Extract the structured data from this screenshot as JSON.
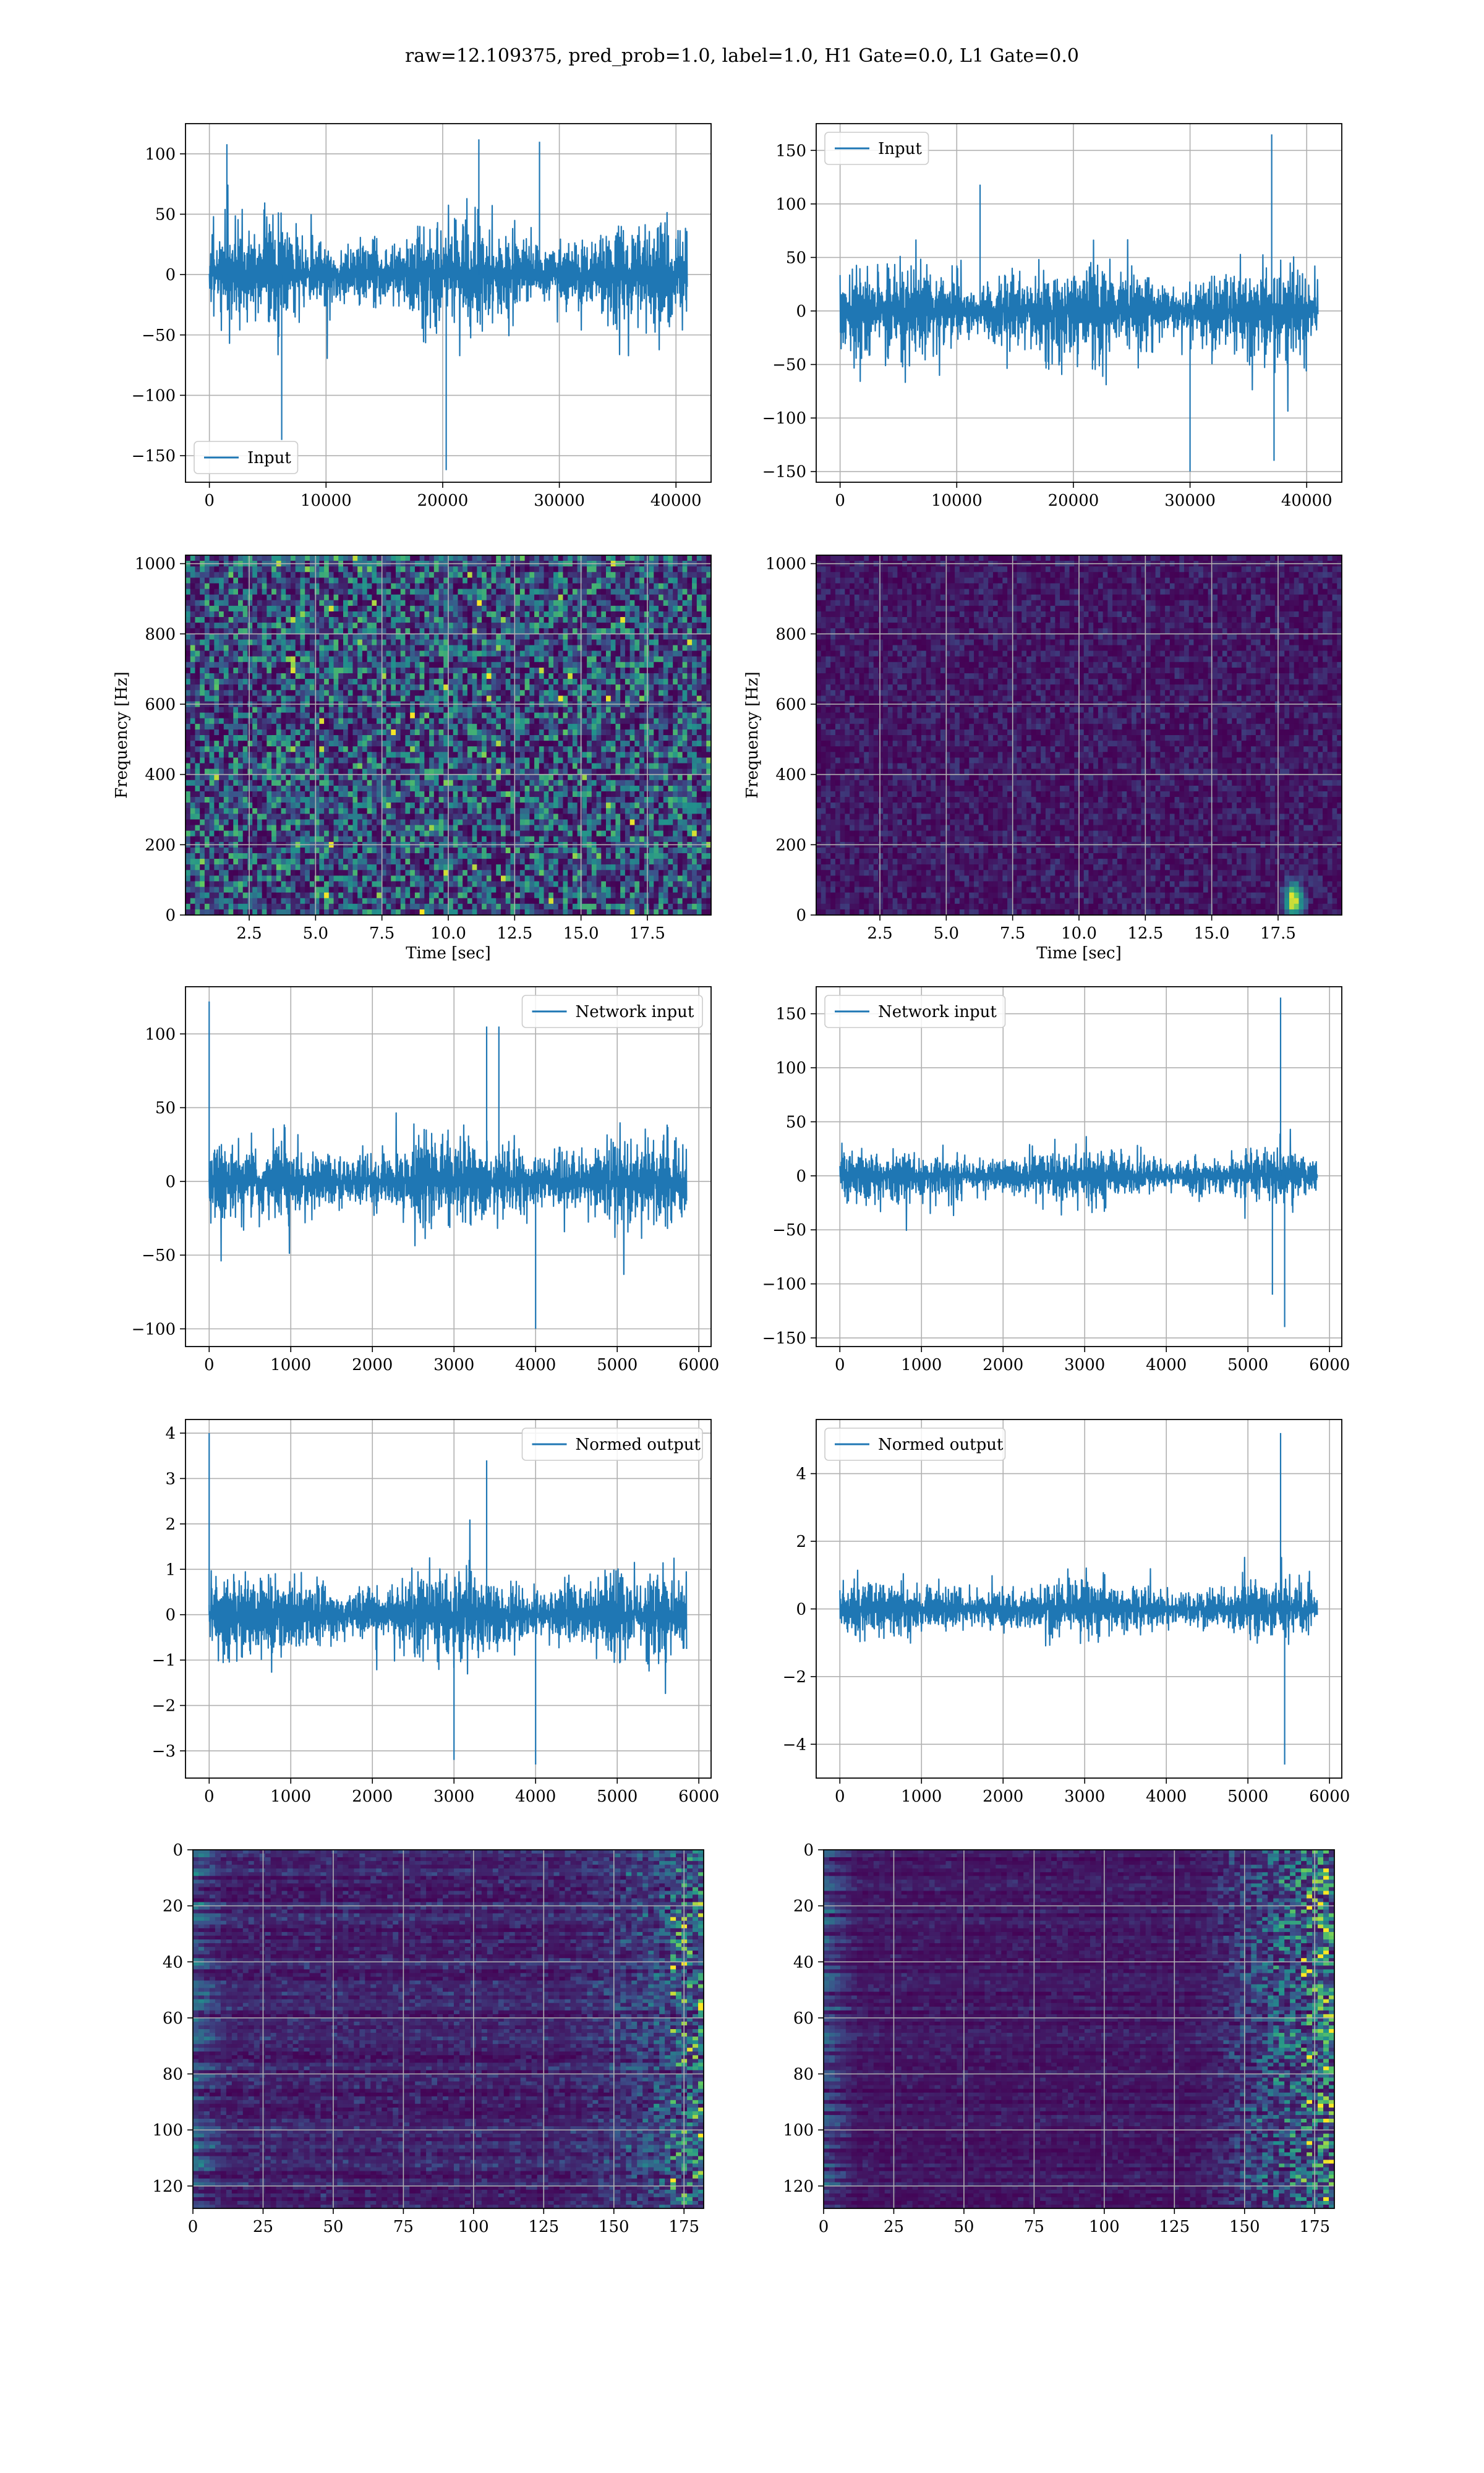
{
  "figure": {
    "title": "raw=12.109375, pred_prob=1.0, label=1.0, H1 Gate=0.0, L1 Gate=0.0"
  },
  "colors": {
    "series": "#1f77b4",
    "grid": "#b0b0b0",
    "axes": "#000000",
    "viridis_dark": "#440154",
    "viridis_blue": "#31688e",
    "viridis_teal": "#21918c",
    "viridis_green": "#35b779",
    "viridis_yellow": "#fde725"
  },
  "chart_data": [
    {
      "id": "row1-left",
      "type": "line",
      "title": "",
      "legend": {
        "entries": [
          "Input"
        ],
        "placement": "lower-left"
      },
      "xlabel": "",
      "ylabel": "",
      "xlim": [
        -2048,
        43008
      ],
      "ylim": [
        -172,
        125
      ],
      "xticks": [
        0,
        10000,
        20000,
        30000,
        40000
      ],
      "xticklabels": [
        "0",
        "10000",
        "20000",
        "30000",
        "40000"
      ],
      "yticks": [
        -150,
        -100,
        -50,
        0,
        50,
        100
      ],
      "yticklabels": [
        "−150",
        "−100",
        "−50",
        "0",
        "50",
        "100"
      ],
      "grid": true,
      "series": [
        {
          "name": "Input",
          "x_range": [
            0,
            40960
          ],
          "envelope_typical": [
            -80,
            80
          ],
          "peaks": [
            [
              1500,
              108
            ],
            [
              6200,
              -137
            ],
            [
              20300,
              -162
            ],
            [
              23100,
              112
            ],
            [
              28300,
              110
            ]
          ]
        }
      ]
    },
    {
      "id": "row1-right",
      "type": "line",
      "title": "",
      "legend": {
        "entries": [
          "Input"
        ],
        "placement": "upper-left"
      },
      "xlabel": "",
      "ylabel": "",
      "xlim": [
        -2048,
        43008
      ],
      "ylim": [
        -160,
        175
      ],
      "xticks": [
        0,
        10000,
        20000,
        30000,
        40000
      ],
      "xticklabels": [
        "0",
        "10000",
        "20000",
        "30000",
        "40000"
      ],
      "yticks": [
        -150,
        -100,
        -50,
        0,
        50,
        100,
        150
      ],
      "yticklabels": [
        "−150",
        "−100",
        "−50",
        "0",
        "50",
        "100",
        "150"
      ],
      "grid": true,
      "series": [
        {
          "name": "Input",
          "x_range": [
            0,
            40960
          ],
          "envelope_typical": [
            -85,
            85
          ],
          "peaks": [
            [
              37000,
              165
            ],
            [
              30000,
              -150
            ],
            [
              37200,
              -140
            ],
            [
              12000,
              118
            ]
          ]
        }
      ]
    },
    {
      "id": "row2-left",
      "type": "heatmap",
      "title": "",
      "xlabel": "Time [sec]",
      "ylabel": "Frequency [Hz]",
      "xlim": [
        0.1,
        19.9
      ],
      "ylim": [
        0,
        1024
      ],
      "xticks": [
        2.5,
        5.0,
        7.5,
        10.0,
        12.5,
        15.0,
        17.5
      ],
      "xticklabels": [
        "2.5",
        "5.0",
        "7.5",
        "10.0",
        "12.5",
        "15.0",
        "17.5"
      ],
      "yticks": [
        0,
        200,
        400,
        600,
        800,
        1000
      ],
      "yticklabels": [
        "0",
        "200",
        "400",
        "600",
        "800",
        "1000"
      ],
      "grid": true,
      "colormap": "viridis",
      "description_level": "moderate broadband noise",
      "intensity": 0.42
    },
    {
      "id": "row2-right",
      "type": "heatmap",
      "title": "",
      "xlabel": "Time [sec]",
      "ylabel": "Frequency [Hz]",
      "xlim": [
        0.1,
        19.9
      ],
      "ylim": [
        0,
        1024
      ],
      "xticks": [
        2.5,
        5.0,
        7.5,
        10.0,
        12.5,
        15.0,
        17.5
      ],
      "xticklabels": [
        "2.5",
        "5.0",
        "7.5",
        "10.0",
        "12.5",
        "15.0",
        "17.5"
      ],
      "yticks": [
        0,
        200,
        400,
        600,
        800,
        1000
      ],
      "yticklabels": [
        "0",
        "200",
        "400",
        "600",
        "800",
        "1000"
      ],
      "grid": true,
      "colormap": "viridis",
      "intensity": 0.12,
      "hotspot": {
        "t": 18.0,
        "f": 50
      }
    },
    {
      "id": "row3-left",
      "type": "line",
      "title": "",
      "legend": {
        "entries": [
          "Network input"
        ],
        "placement": "upper-right"
      },
      "xlabel": "",
      "ylabel": "",
      "xlim": [
        -290,
        6150
      ],
      "ylim": [
        -112,
        132
      ],
      "xticks": [
        0,
        1000,
        2000,
        3000,
        4000,
        5000,
        6000
      ],
      "xticklabels": [
        "0",
        "1000",
        "2000",
        "3000",
        "4000",
        "5000",
        "6000"
      ],
      "yticks": [
        -100,
        -50,
        0,
        50,
        100
      ],
      "yticklabels": [
        "−100",
        "−50",
        "0",
        "50",
        "100"
      ],
      "grid": true,
      "series": [
        {
          "name": "Network input",
          "x_range": [
            0,
            5850
          ],
          "envelope_typical": [
            -55,
            55
          ],
          "peaks": [
            [
              0,
              122
            ],
            [
              3400,
              105
            ],
            [
              3550,
              105
            ],
            [
              4000,
              -100
            ]
          ]
        }
      ]
    },
    {
      "id": "row3-right",
      "type": "line",
      "title": "",
      "legend": {
        "entries": [
          "Network input"
        ],
        "placement": "upper-left"
      },
      "xlabel": "",
      "ylabel": "",
      "xlim": [
        -290,
        6150
      ],
      "ylim": [
        -158,
        175
      ],
      "xticks": [
        0,
        1000,
        2000,
        3000,
        4000,
        5000,
        6000
      ],
      "xticklabels": [
        "0",
        "1000",
        "2000",
        "3000",
        "4000",
        "5000",
        "6000"
      ],
      "yticks": [
        -150,
        -100,
        -50,
        0,
        50,
        100,
        150
      ],
      "yticklabels": [
        "−150",
        "−100",
        "−50",
        "0",
        "50",
        "100",
        "150"
      ],
      "grid": true,
      "series": [
        {
          "name": "Network input",
          "x_range": [
            0,
            5850
          ],
          "envelope_typical": [
            -45,
            45
          ],
          "peaks": [
            [
              5400,
              165
            ],
            [
              5450,
              -140
            ],
            [
              5300,
              -110
            ]
          ]
        }
      ]
    },
    {
      "id": "row4-left",
      "type": "line",
      "title": "",
      "legend": {
        "entries": [
          "Normed output"
        ],
        "placement": "upper-right"
      },
      "xlabel": "",
      "ylabel": "",
      "xlim": [
        -290,
        6150
      ],
      "ylim": [
        -3.6,
        4.3
      ],
      "xticks": [
        0,
        1000,
        2000,
        3000,
        4000,
        5000,
        6000
      ],
      "xticklabels": [
        "0",
        "1000",
        "2000",
        "3000",
        "4000",
        "5000",
        "6000"
      ],
      "yticks": [
        -3,
        -2,
        -1,
        0,
        1,
        2,
        3,
        4
      ],
      "yticklabels": [
        "−3",
        "−2",
        "−1",
        "0",
        "1",
        "2",
        "3",
        "4"
      ],
      "grid": true,
      "series": [
        {
          "name": "Normed output",
          "x_range": [
            0,
            5850
          ],
          "envelope_typical": [
            -1.8,
            1.8
          ],
          "peaks": [
            [
              0,
              4.0
            ],
            [
              3400,
              3.4
            ],
            [
              4000,
              -3.3
            ],
            [
              3000,
              -3.2
            ]
          ]
        }
      ]
    },
    {
      "id": "row4-right",
      "type": "line",
      "title": "",
      "legend": {
        "entries": [
          "Normed output"
        ],
        "placement": "upper-left"
      },
      "xlabel": "",
      "ylabel": "",
      "xlim": [
        -290,
        6150
      ],
      "ylim": [
        -5.0,
        5.6
      ],
      "xticks": [
        0,
        1000,
        2000,
        3000,
        4000,
        5000,
        6000
      ],
      "xticklabels": [
        "0",
        "1000",
        "2000",
        "3000",
        "4000",
        "5000",
        "6000"
      ],
      "yticks": [
        -4,
        -2,
        0,
        2,
        4
      ],
      "yticklabels": [
        "−4",
        "−2",
        "0",
        "2",
        "4"
      ],
      "grid": true,
      "series": [
        {
          "name": "Normed output",
          "x_range": [
            0,
            5850
          ],
          "envelope_typical": [
            -1.6,
            1.6
          ],
          "peaks": [
            [
              5400,
              5.2
            ],
            [
              5450,
              -4.6
            ]
          ]
        }
      ]
    },
    {
      "id": "row5-left",
      "type": "heatmap",
      "title": "",
      "xlabel": "",
      "ylabel": "",
      "xlim": [
        0,
        182
      ],
      "ylim": [
        128,
        0
      ],
      "xticks": [
        0,
        25,
        50,
        75,
        100,
        125,
        150,
        175
      ],
      "xticklabels": [
        "0",
        "25",
        "50",
        "75",
        "100",
        "125",
        "150",
        "175"
      ],
      "yticks": [
        0,
        20,
        40,
        60,
        80,
        100,
        120
      ],
      "yticklabels": [
        "0",
        "20",
        "40",
        "60",
        "80",
        "100",
        "120"
      ],
      "grid": true,
      "colormap": "viridis",
      "intensity": 0.3
    },
    {
      "id": "row5-right",
      "type": "heatmap",
      "title": "",
      "xlabel": "",
      "ylabel": "",
      "xlim": [
        0,
        182
      ],
      "ylim": [
        128,
        0
      ],
      "xticks": [
        0,
        25,
        50,
        75,
        100,
        125,
        150,
        175
      ],
      "xticklabels": [
        "0",
        "25",
        "50",
        "75",
        "100",
        "125",
        "150",
        "175"
      ],
      "yticks": [
        0,
        20,
        40,
        60,
        80,
        100,
        120
      ],
      "yticklabels": [
        "0",
        "20",
        "40",
        "60",
        "80",
        "100",
        "120"
      ],
      "grid": true,
      "colormap": "viridis",
      "intensity": 0.2
    }
  ]
}
